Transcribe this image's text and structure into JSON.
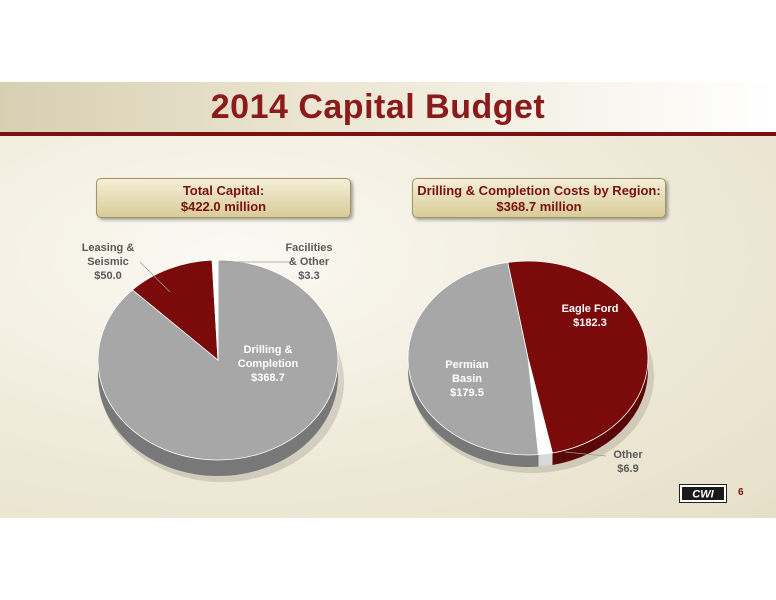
{
  "title": "2014 Capital Budget",
  "left_box": {
    "line1": "Total Capital:",
    "line2": "$422.0 million"
  },
  "right_box": {
    "line1": "Drilling & Completion Costs by Region:",
    "line2": "$368.7 million"
  },
  "page_number": "6",
  "logo_text": "CWI",
  "colors": {
    "maroon": "#7b0a0a",
    "gray": "#a7a7a7",
    "white": "#ffffff",
    "title": "#8b1a1a"
  },
  "chart_data": [
    {
      "type": "pie",
      "title": "",
      "slices": [
        {
          "label": "Drilling & Completion",
          "label_lines": [
            "Drilling &",
            "Completion",
            "$368.7"
          ],
          "value": 368.7,
          "color": "#a7a7a7"
        },
        {
          "label": "Leasing & Seismic",
          "label_lines": [
            "Leasing &",
            "Seismic",
            "$50.0"
          ],
          "value": 50.0,
          "color": "#7b0a0a"
        },
        {
          "label": "Facilities & Other",
          "label_lines": [
            "Facilities",
            "& Other",
            "$3.3"
          ],
          "value": 3.3,
          "color": "#ffffff"
        }
      ]
    },
    {
      "type": "pie",
      "title": "",
      "slices": [
        {
          "label": "Eagle Ford",
          "label_lines": [
            "Eagle Ford",
            "$182.3"
          ],
          "value": 182.3,
          "color": "#7b0a0a"
        },
        {
          "label": "Other",
          "label_lines": [
            "Other",
            "$6.9"
          ],
          "value": 6.9,
          "color": "#ffffff"
        },
        {
          "label": "Permian Basin",
          "label_lines": [
            "Permian",
            "Basin",
            "$179.5"
          ],
          "value": 179.5,
          "color": "#a7a7a7"
        }
      ]
    }
  ]
}
